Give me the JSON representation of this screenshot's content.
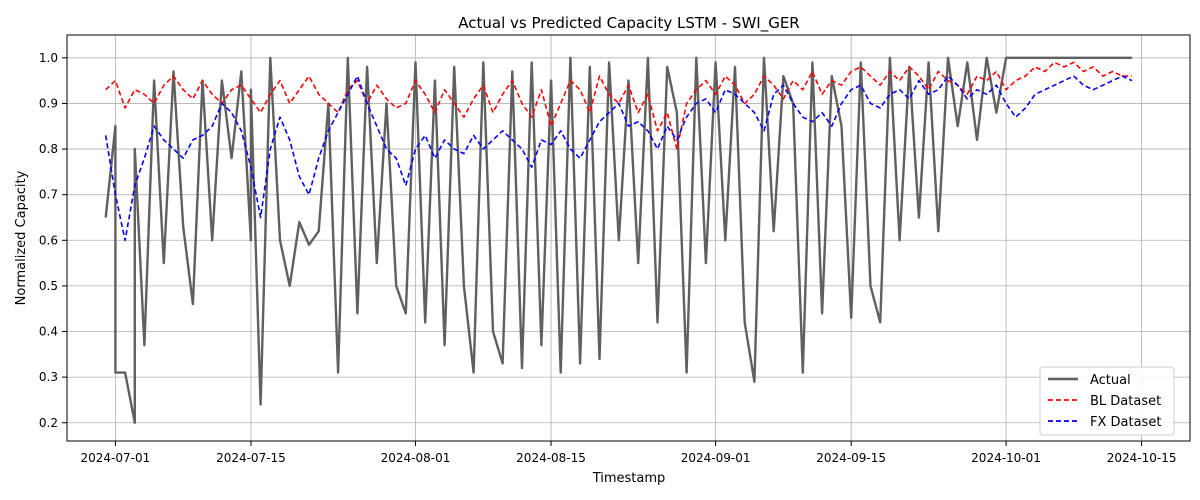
{
  "chart_data": {
    "type": "line",
    "title": "Actual vs Predicted Capacity LSTM - SWI_GER",
    "xlabel": "Timestamp",
    "ylabel": "Normalized Capacity",
    "x_range": [
      "2024-06-26",
      "2024-10-20"
    ],
    "ylim": [
      0.16,
      1.05
    ],
    "x_ticks": [
      "2024-07-01",
      "2024-07-15",
      "2024-08-01",
      "2024-08-15",
      "2024-09-01",
      "2024-09-15",
      "2024-10-01",
      "2024-10-15"
    ],
    "y_ticks": [
      0.2,
      0.3,
      0.4,
      0.5,
      0.6,
      0.7,
      0.8,
      0.9,
      1.0
    ],
    "grid": true,
    "legend_position": "lower-right",
    "series": [
      {
        "name": "Actual",
        "color": "#606060",
        "style": "solid",
        "x": [
          "2024-06-30",
          "2024-07-01",
          "2024-07-01",
          "2024-07-02",
          "2024-07-03",
          "2024-07-03",
          "2024-07-04",
          "2024-07-05",
          "2024-07-06",
          "2024-07-07",
          "2024-07-08",
          "2024-07-09",
          "2024-07-10",
          "2024-07-11",
          "2024-07-12",
          "2024-07-13",
          "2024-07-14",
          "2024-07-15",
          "2024-07-15",
          "2024-07-16",
          "2024-07-17",
          "2024-07-18",
          "2024-07-19",
          "2024-07-20",
          "2024-07-21",
          "2024-07-22",
          "2024-07-23",
          "2024-07-24",
          "2024-07-25",
          "2024-07-26",
          "2024-07-27",
          "2024-07-28",
          "2024-07-29",
          "2024-07-30",
          "2024-07-31",
          "2024-08-01",
          "2024-08-02",
          "2024-08-03",
          "2024-08-04",
          "2024-08-05",
          "2024-08-06",
          "2024-08-07",
          "2024-08-08",
          "2024-08-09",
          "2024-08-10",
          "2024-08-11",
          "2024-08-12",
          "2024-08-13",
          "2024-08-14",
          "2024-08-15",
          "2024-08-16",
          "2024-08-17",
          "2024-08-18",
          "2024-08-19",
          "2024-08-20",
          "2024-08-21",
          "2024-08-22",
          "2024-08-23",
          "2024-08-24",
          "2024-08-25",
          "2024-08-26",
          "2024-08-27",
          "2024-08-28",
          "2024-08-29",
          "2024-08-30",
          "2024-08-31",
          "2024-09-01",
          "2024-09-02",
          "2024-09-03",
          "2024-09-04",
          "2024-09-05",
          "2024-09-06",
          "2024-09-07",
          "2024-09-08",
          "2024-09-09",
          "2024-09-10",
          "2024-09-11",
          "2024-09-12",
          "2024-09-13",
          "2024-09-14",
          "2024-09-15",
          "2024-09-16",
          "2024-09-17",
          "2024-09-18",
          "2024-09-19",
          "2024-09-20",
          "2024-09-21",
          "2024-09-22",
          "2024-09-23",
          "2024-09-24",
          "2024-09-25",
          "2024-09-26",
          "2024-09-27",
          "2024-09-28",
          "2024-09-29",
          "2024-09-30",
          "2024-10-01",
          "2024-10-02",
          "2024-10-03",
          "2024-10-04",
          "2024-10-05",
          "2024-10-06",
          "2024-10-07",
          "2024-10-08",
          "2024-10-09",
          "2024-10-10",
          "2024-10-11",
          "2024-10-12",
          "2024-10-13",
          "2024-10-14"
        ],
        "values": [
          0.65,
          0.85,
          0.31,
          0.31,
          0.2,
          0.8,
          0.37,
          0.95,
          0.55,
          0.97,
          0.63,
          0.46,
          0.95,
          0.6,
          0.95,
          0.78,
          0.97,
          0.6,
          0.93,
          0.24,
          1.0,
          0.6,
          0.5,
          0.64,
          0.59,
          0.62,
          0.9,
          0.31,
          1.0,
          0.44,
          0.98,
          0.55,
          0.9,
          0.5,
          0.44,
          0.99,
          0.42,
          0.95,
          0.37,
          0.98,
          0.5,
          0.31,
          0.99,
          0.4,
          0.33,
          0.97,
          0.32,
          0.99,
          0.37,
          0.95,
          0.31,
          1.0,
          0.33,
          0.98,
          0.34,
          0.99,
          0.6,
          0.95,
          0.55,
          1.0,
          0.42,
          0.98,
          0.88,
          0.31,
          1.0,
          0.55,
          0.99,
          0.6,
          0.98,
          0.42,
          0.29,
          1.0,
          0.62,
          0.96,
          0.9,
          0.31,
          0.99,
          0.44,
          0.96,
          0.85,
          0.43,
          0.99,
          0.5,
          0.42,
          1.0,
          0.6,
          0.98,
          0.65,
          0.99,
          0.62,
          1.0,
          0.85,
          0.99,
          0.82,
          1.0,
          0.88,
          1.0,
          1.0,
          1.0,
          1.0,
          1.0,
          1.0,
          1.0,
          1.0,
          1.0,
          1.0,
          1.0,
          1.0,
          1.0,
          1.0
        ]
      },
      {
        "name": "BL Dataset",
        "color": "#ff0000",
        "style": "dashed",
        "x": [
          "2024-06-30",
          "2024-07-01",
          "2024-07-02",
          "2024-07-03",
          "2024-07-04",
          "2024-07-05",
          "2024-07-06",
          "2024-07-07",
          "2024-07-08",
          "2024-07-09",
          "2024-07-10",
          "2024-07-11",
          "2024-07-12",
          "2024-07-13",
          "2024-07-14",
          "2024-07-15",
          "2024-07-16",
          "2024-07-17",
          "2024-07-18",
          "2024-07-19",
          "2024-07-20",
          "2024-07-21",
          "2024-07-22",
          "2024-07-23",
          "2024-07-24",
          "2024-07-25",
          "2024-07-26",
          "2024-07-27",
          "2024-07-28",
          "2024-07-29",
          "2024-07-30",
          "2024-07-31",
          "2024-08-01",
          "2024-08-02",
          "2024-08-03",
          "2024-08-04",
          "2024-08-05",
          "2024-08-06",
          "2024-08-07",
          "2024-08-08",
          "2024-08-09",
          "2024-08-10",
          "2024-08-11",
          "2024-08-12",
          "2024-08-13",
          "2024-08-14",
          "2024-08-15",
          "2024-08-16",
          "2024-08-17",
          "2024-08-18",
          "2024-08-19",
          "2024-08-20",
          "2024-08-21",
          "2024-08-22",
          "2024-08-23",
          "2024-08-24",
          "2024-08-25",
          "2024-08-26",
          "2024-08-27",
          "2024-08-28",
          "2024-08-29",
          "2024-08-30",
          "2024-08-31",
          "2024-09-01",
          "2024-09-02",
          "2024-09-03",
          "2024-09-04",
          "2024-09-05",
          "2024-09-06",
          "2024-09-07",
          "2024-09-08",
          "2024-09-09",
          "2024-09-10",
          "2024-09-11",
          "2024-09-12",
          "2024-09-13",
          "2024-09-14",
          "2024-09-15",
          "2024-09-16",
          "2024-09-17",
          "2024-09-18",
          "2024-09-19",
          "2024-09-20",
          "2024-09-21",
          "2024-09-22",
          "2024-09-23",
          "2024-09-24",
          "2024-09-25",
          "2024-09-26",
          "2024-09-27",
          "2024-09-28",
          "2024-09-29",
          "2024-09-30",
          "2024-10-01",
          "2024-10-02",
          "2024-10-03",
          "2024-10-04",
          "2024-10-05",
          "2024-10-06",
          "2024-10-07",
          "2024-10-08",
          "2024-10-09",
          "2024-10-10",
          "2024-10-11",
          "2024-10-12",
          "2024-10-13",
          "2024-10-14"
        ],
        "values": [
          0.93,
          0.95,
          0.89,
          0.93,
          0.92,
          0.9,
          0.94,
          0.96,
          0.93,
          0.91,
          0.95,
          0.92,
          0.9,
          0.93,
          0.94,
          0.91,
          0.88,
          0.92,
          0.95,
          0.9,
          0.93,
          0.96,
          0.92,
          0.9,
          0.88,
          0.93,
          0.95,
          0.9,
          0.94,
          0.91,
          0.89,
          0.9,
          0.95,
          0.92,
          0.88,
          0.93,
          0.9,
          0.87,
          0.91,
          0.94,
          0.88,
          0.92,
          0.95,
          0.9,
          0.87,
          0.93,
          0.85,
          0.9,
          0.95,
          0.93,
          0.88,
          0.96,
          0.92,
          0.9,
          0.94,
          0.88,
          0.92,
          0.84,
          0.88,
          0.8,
          0.9,
          0.93,
          0.95,
          0.92,
          0.96,
          0.94,
          0.9,
          0.92,
          0.96,
          0.94,
          0.91,
          0.95,
          0.93,
          0.97,
          0.92,
          0.95,
          0.94,
          0.97,
          0.98,
          0.96,
          0.94,
          0.97,
          0.95,
          0.98,
          0.96,
          0.93,
          0.97,
          0.95,
          0.94,
          0.92,
          0.96,
          0.95,
          0.97,
          0.93,
          0.95,
          0.96,
          0.98,
          0.97,
          0.99,
          0.98,
          0.99,
          0.97,
          0.98,
          0.96,
          0.97,
          0.96,
          0.96
        ]
      },
      {
        "name": "FX Dataset",
        "color": "#0000ff",
        "style": "dashed",
        "x": [
          "2024-06-30",
          "2024-07-01",
          "2024-07-02",
          "2024-07-03",
          "2024-07-04",
          "2024-07-05",
          "2024-07-06",
          "2024-07-07",
          "2024-07-08",
          "2024-07-09",
          "2024-07-10",
          "2024-07-11",
          "2024-07-12",
          "2024-07-13",
          "2024-07-14",
          "2024-07-15",
          "2024-07-16",
          "2024-07-17",
          "2024-07-18",
          "2024-07-19",
          "2024-07-20",
          "2024-07-21",
          "2024-07-22",
          "2024-07-23",
          "2024-07-24",
          "2024-07-25",
          "2024-07-26",
          "2024-07-27",
          "2024-07-28",
          "2024-07-29",
          "2024-07-30",
          "2024-07-31",
          "2024-08-01",
          "2024-08-02",
          "2024-08-03",
          "2024-08-04",
          "2024-08-05",
          "2024-08-06",
          "2024-08-07",
          "2024-08-08",
          "2024-08-09",
          "2024-08-10",
          "2024-08-11",
          "2024-08-12",
          "2024-08-13",
          "2024-08-14",
          "2024-08-15",
          "2024-08-16",
          "2024-08-17",
          "2024-08-18",
          "2024-08-19",
          "2024-08-20",
          "2024-08-21",
          "2024-08-22",
          "2024-08-23",
          "2024-08-24",
          "2024-08-25",
          "2024-08-26",
          "2024-08-27",
          "2024-08-28",
          "2024-08-29",
          "2024-08-30",
          "2024-08-31",
          "2024-09-01",
          "2024-09-02",
          "2024-09-03",
          "2024-09-04",
          "2024-09-05",
          "2024-09-06",
          "2024-09-07",
          "2024-09-08",
          "2024-09-09",
          "2024-09-10",
          "2024-09-11",
          "2024-09-12",
          "2024-09-13",
          "2024-09-14",
          "2024-09-15",
          "2024-09-16",
          "2024-09-17",
          "2024-09-18",
          "2024-09-19",
          "2024-09-20",
          "2024-09-21",
          "2024-09-22",
          "2024-09-23",
          "2024-09-24",
          "2024-09-25",
          "2024-09-26",
          "2024-09-27",
          "2024-09-28",
          "2024-09-29",
          "2024-09-30",
          "2024-10-01",
          "2024-10-02",
          "2024-10-03",
          "2024-10-04",
          "2024-10-05",
          "2024-10-06",
          "2024-10-07",
          "2024-10-08",
          "2024-10-09",
          "2024-10-10",
          "2024-10-11",
          "2024-10-12",
          "2024-10-13",
          "2024-10-14"
        ],
        "values": [
          0.83,
          0.7,
          0.6,
          0.72,
          0.78,
          0.85,
          0.82,
          0.8,
          0.78,
          0.82,
          0.83,
          0.85,
          0.9,
          0.88,
          0.84,
          0.76,
          0.65,
          0.8,
          0.87,
          0.82,
          0.74,
          0.7,
          0.78,
          0.84,
          0.88,
          0.92,
          0.96,
          0.9,
          0.85,
          0.8,
          0.78,
          0.72,
          0.8,
          0.83,
          0.78,
          0.82,
          0.8,
          0.79,
          0.83,
          0.8,
          0.82,
          0.84,
          0.82,
          0.8,
          0.76,
          0.82,
          0.81,
          0.84,
          0.8,
          0.78,
          0.82,
          0.86,
          0.88,
          0.9,
          0.85,
          0.86,
          0.84,
          0.8,
          0.85,
          0.82,
          0.87,
          0.9,
          0.91,
          0.88,
          0.93,
          0.92,
          0.9,
          0.88,
          0.84,
          0.92,
          0.94,
          0.9,
          0.87,
          0.86,
          0.88,
          0.85,
          0.9,
          0.93,
          0.94,
          0.9,
          0.89,
          0.92,
          0.93,
          0.91,
          0.95,
          0.92,
          0.93,
          0.96,
          0.94,
          0.91,
          0.93,
          0.92,
          0.94,
          0.9,
          0.87,
          0.89,
          0.92,
          0.93,
          0.94,
          0.95,
          0.96,
          0.94,
          0.93,
          0.94,
          0.95,
          0.96,
          0.95
        ]
      }
    ]
  }
}
